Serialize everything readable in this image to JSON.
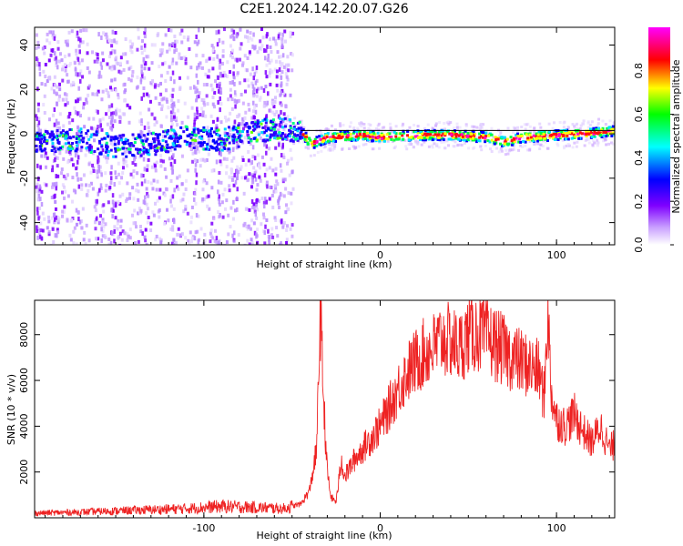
{
  "title": "C2E1.2024.142.20.07.G26",
  "chart_data": [
    {
      "type": "heatmap",
      "xlabel": "Height of straight line (km)",
      "ylabel": "Frequency (Hz)",
      "xlim": [
        -196,
        133
      ],
      "ylim": [
        -50,
        48
      ],
      "xticks": [
        -100,
        0,
        100
      ],
      "yticks": [
        -40,
        -20,
        0,
        20,
        40
      ],
      "colorbar": {
        "label": "Normalized spectral amplitude",
        "range": [
          0,
          1
        ],
        "ticks": [
          0.0,
          0.2,
          0.4,
          0.6,
          0.8
        ],
        "colors": [
          "#ffffff",
          "#c9a0ff",
          "#7f00ff",
          "#0000ff",
          "#00ffff",
          "#00ff00",
          "#ffff00",
          "#ff0000",
          "#ff00ff"
        ]
      },
      "ridge": {
        "x": [
          -196,
          -170,
          -150,
          -130,
          -110,
          -90,
          -70,
          -55,
          -45,
          -40,
          -30,
          -10,
          0,
          20,
          40,
          60,
          70,
          80,
          100,
          120,
          133
        ],
        "y": [
          -3,
          -2,
          -5,
          -4,
          -1,
          -2,
          2,
          3,
          1,
          -4,
          -1,
          0,
          -1,
          0,
          0,
          -1,
          -3,
          -1,
          0,
          1,
          2
        ]
      }
    },
    {
      "type": "line",
      "xlabel": "Height of straight line (km)",
      "ylabel": "SNR (10 * v/v)",
      "xlim": [
        -196,
        133
      ],
      "ylim": [
        0,
        9500
      ],
      "xticks": [
        -100,
        0,
        100
      ],
      "yticks": [
        2000,
        4000,
        6000,
        8000
      ],
      "series": [
        {
          "color": "#ee2222",
          "x": [
            -196,
            -170,
            -150,
            -130,
            -110,
            -90,
            -70,
            -55,
            -45,
            -40,
            -36,
            -34,
            -32,
            -30,
            -28,
            -25,
            -22,
            -20,
            -15,
            -10,
            -5,
            0,
            5,
            10,
            15,
            20,
            25,
            30,
            35,
            40,
            45,
            50,
            55,
            60,
            65,
            70,
            75,
            80,
            85,
            90,
            93,
            95,
            97,
            100,
            105,
            110,
            115,
            120,
            125,
            130,
            133
          ],
          "y": [
            200,
            250,
            300,
            350,
            400,
            500,
            450,
            400,
            600,
            1200,
            3000,
            9000,
            5000,
            2000,
            900,
            700,
            2500,
            1800,
            2500,
            3000,
            3500,
            4000,
            4800,
            5600,
            6300,
            6800,
            7200,
            7400,
            7800,
            7700,
            7400,
            8000,
            8100,
            7900,
            7600,
            7300,
            7000,
            6800,
            6600,
            6400,
            5200,
            9200,
            5500,
            4300,
            4000,
            4500,
            3800,
            3300,
            4000,
            3000,
            3200
          ]
        }
      ]
    }
  ]
}
